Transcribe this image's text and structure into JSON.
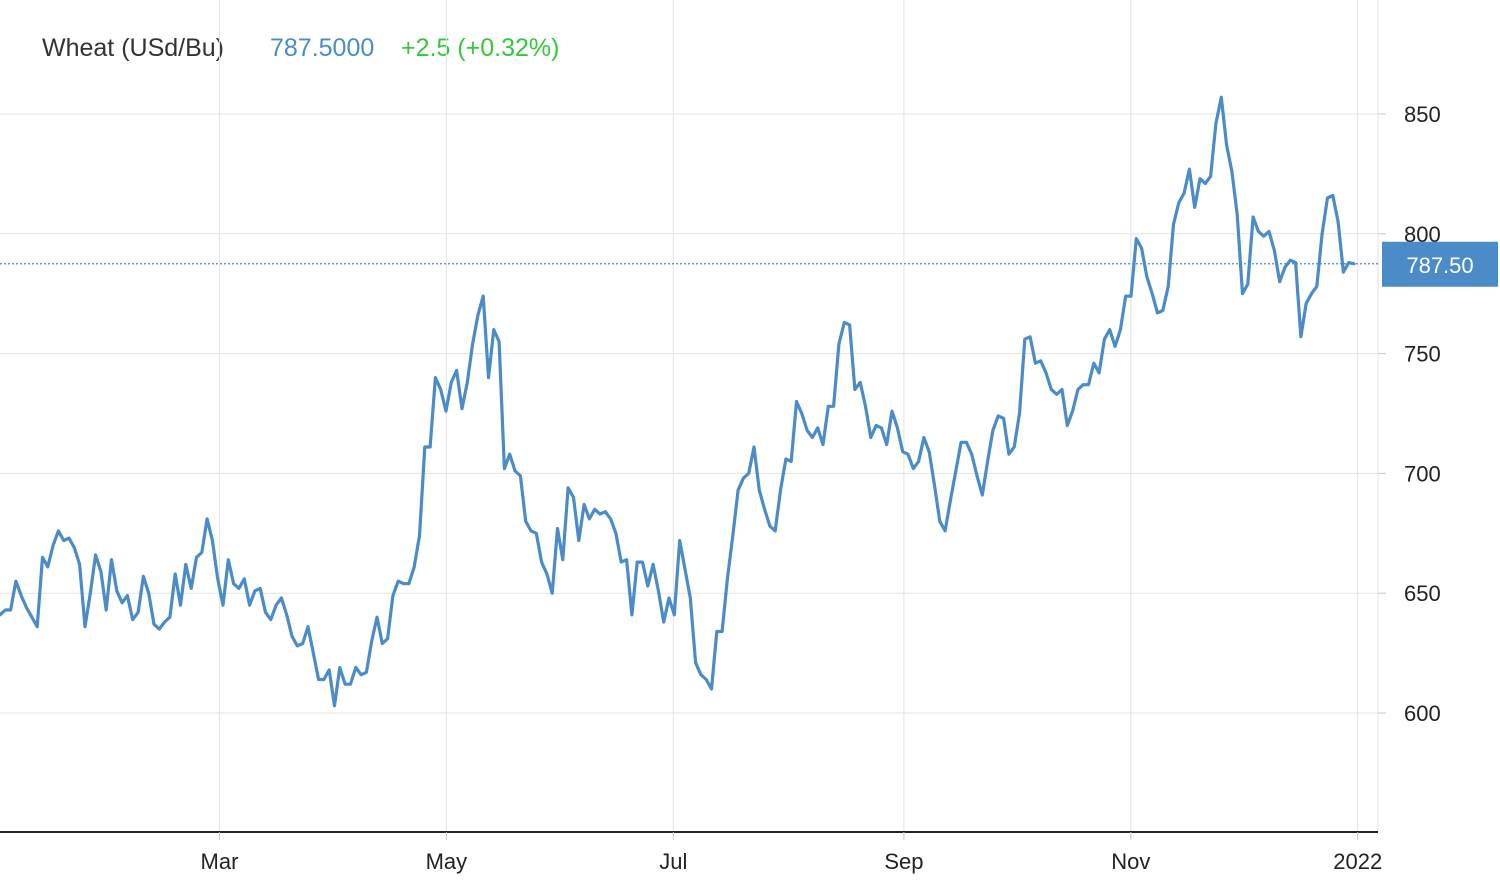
{
  "header": {
    "name": "Wheat (USd/Bu)",
    "price": "787.5000",
    "change": "+2.5 (+0.32%)"
  },
  "colors": {
    "line": "#4a8bc8",
    "price": "#4a8bc8",
    "change": "#35c83a",
    "grid": "#e3e3e3",
    "label_bg": "#4a8bc8"
  },
  "chart_data": {
    "type": "line",
    "series": [
      {
        "values": [
          641,
          643,
          643,
          655,
          649,
          644,
          640,
          636,
          665,
          661,
          670,
          676,
          672,
          673,
          669,
          662,
          636,
          650,
          666,
          659,
          643,
          664,
          651,
          646,
          649,
          639,
          642,
          657,
          650,
          637,
          635,
          638,
          640,
          658,
          645,
          662,
          652,
          665,
          667,
          681,
          672,
          656,
          645,
          664,
          654,
          652,
          656,
          645,
          651,
          652,
          642,
          639,
          645,
          648,
          641,
          632,
          628,
          629,
          636,
          625,
          614,
          614,
          618,
          603,
          619,
          612,
          612,
          619,
          616,
          617,
          630,
          640,
          629,
          631,
          649,
          655,
          654,
          654,
          661,
          674,
          711,
          711,
          740,
          735,
          726,
          738,
          743,
          727,
          738,
          754,
          766,
          774,
          740,
          760,
          755,
          702,
          708,
          701,
          699,
          680,
          676,
          675,
          663,
          658,
          650,
          677,
          664,
          694,
          690,
          672,
          687,
          681,
          685,
          683,
          684,
          681,
          675,
          663,
          664,
          641,
          663,
          663,
          653,
          662,
          651,
          638,
          648,
          641,
          672,
          660,
          648,
          621,
          616,
          614,
          610,
          634,
          634,
          656,
          674,
          693,
          698,
          700,
          711,
          693,
          685,
          678,
          676,
          693,
          706,
          705,
          730,
          725,
          718,
          715,
          719,
          712,
          728,
          728,
          754,
          763,
          762,
          735,
          738,
          728,
          715,
          720,
          719,
          712,
          726,
          719,
          709,
          708,
          702,
          705,
          715,
          709,
          695,
          680,
          676,
          689,
          701,
          713,
          713,
          708,
          699,
          691,
          705,
          718,
          724,
          723,
          708,
          711,
          725,
          756,
          757,
          746,
          747,
          742,
          735,
          733,
          735,
          720,
          726,
          735,
          737,
          737,
          746,
          742,
          756,
          760,
          753,
          760,
          774,
          774,
          798,
          794,
          782,
          775,
          767,
          768,
          778,
          804,
          813,
          817,
          827,
          811,
          823,
          821,
          824,
          846,
          857,
          837,
          826,
          808,
          775,
          779,
          807,
          801,
          799,
          801,
          793,
          780,
          786,
          789,
          788,
          757,
          771,
          775,
          778,
          800,
          815,
          816,
          805,
          784,
          788,
          787.5
        ]
      }
    ],
    "x_start": "2021-01-01",
    "x_end": "2021-12-31",
    "xticks": [
      {
        "label": "Mar",
        "date": "2021-03-01"
      },
      {
        "label": "May",
        "date": "2021-05-01"
      },
      {
        "label": "Jul",
        "date": "2021-07-01"
      },
      {
        "label": "Sep",
        "date": "2021-09-01"
      },
      {
        "label": "Nov",
        "date": "2021-11-01"
      },
      {
        "label": "2022",
        "date": "2022-01-01"
      }
    ],
    "yticks": [
      600,
      650,
      700,
      750,
      800,
      850
    ],
    "ylim": [
      550,
      880
    ],
    "last_value": 787.5,
    "last_value_label": "787.50",
    "grid": true,
    "legend": "none"
  }
}
